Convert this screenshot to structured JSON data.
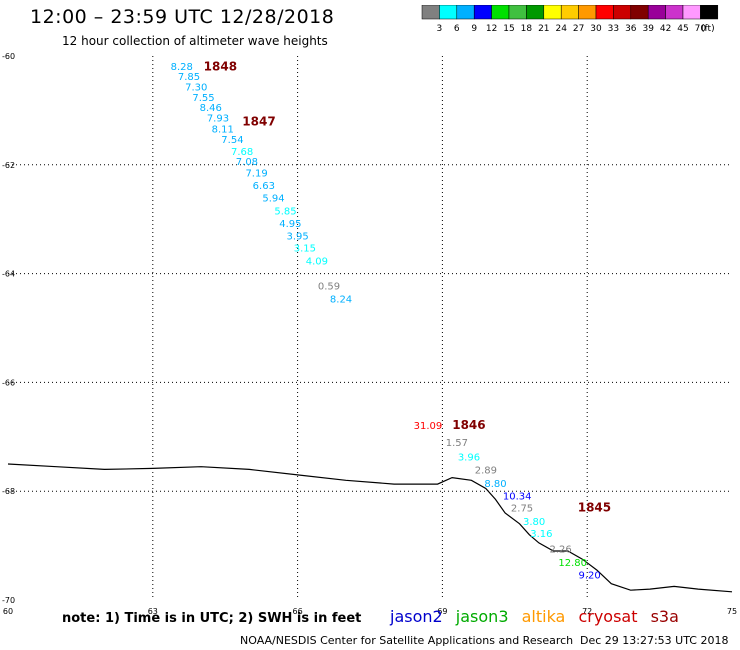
{
  "header": {
    "title": "12:00 – 23:59 UTC 12/28/2018",
    "subtitle": "12 hour collection of altimeter wave heights"
  },
  "scale": {
    "colors": [
      "#808080",
      "#00ffff",
      "#00b0ff",
      "#0000ff",
      "#00e000",
      "#40c040",
      "#009900",
      "#ffff00",
      "#ffcc00",
      "#ff9900",
      "#ff0000",
      "#cc0000",
      "#800000",
      "#990099",
      "#cc33cc",
      "#ff99ff",
      "#000000"
    ],
    "labels": [
      "3",
      "6",
      "9",
      "12",
      "15",
      "18",
      "21",
      "24",
      "27",
      "30",
      "33",
      "36",
      "39",
      "42",
      "45",
      "70"
    ],
    "unit": "(ft)"
  },
  "footer": {
    "note": "note: 1) Time is in UTC; 2) SWH is in feet",
    "legend": [
      {
        "name": "jason2",
        "color": "#0000cc"
      },
      {
        "name": "jason3",
        "color": "#00aa00"
      },
      {
        "name": "altika",
        "color": "#ff9900"
      },
      {
        "name": "cryosat",
        "color": "#cc0000"
      },
      {
        "name": "s3a",
        "color": "#990000"
      }
    ],
    "credit": "NOAA/NESDIS Center for Satellite Applications and Research",
    "timestamp": "Dec 29 13:27:53 UTC 2018"
  },
  "chart_data": {
    "type": "scatter",
    "xlim": [
      60,
      75
    ],
    "ylim": [
      -70,
      -60
    ],
    "x_ticks": [
      "60",
      "63",
      "66",
      "69",
      "72",
      "75"
    ],
    "y_ticks": [
      "-60",
      "-62",
      "-64",
      "-66",
      "-68",
      "-70"
    ],
    "grid": true,
    "swh_points": [
      {
        "lon": 63.6,
        "lat": -60.18,
        "text": "8.28",
        "color": "#00b0ff"
      },
      {
        "lon": 63.75,
        "lat": -60.37,
        "text": "7.85",
        "color": "#00b0ff"
      },
      {
        "lon": 63.9,
        "lat": -60.56,
        "text": "7.30",
        "color": "#00b0ff"
      },
      {
        "lon": 64.05,
        "lat": -60.75,
        "text": "7.55",
        "color": "#00b0ff"
      },
      {
        "lon": 64.2,
        "lat": -60.94,
        "text": "8.46",
        "color": "#00b0ff"
      },
      {
        "lon": 64.35,
        "lat": -61.13,
        "text": "7.93",
        "color": "#00b0ff"
      },
      {
        "lon": 64.45,
        "lat": -61.33,
        "text": "8.11",
        "color": "#00b0ff"
      },
      {
        "lon": 64.65,
        "lat": -61.53,
        "text": "7.54",
        "color": "#00b0ff"
      },
      {
        "lon": 64.85,
        "lat": -61.75,
        "text": "7.68",
        "color": "#00ffff"
      },
      {
        "lon": 64.95,
        "lat": -61.93,
        "text": "7.08",
        "color": "#00b0ff"
      },
      {
        "lon": 65.15,
        "lat": -62.14,
        "text": "7.19",
        "color": "#00b0ff"
      },
      {
        "lon": 65.3,
        "lat": -62.37,
        "text": "6.63",
        "color": "#00b0ff"
      },
      {
        "lon": 65.5,
        "lat": -62.6,
        "text": "5.94",
        "color": "#00b0ff"
      },
      {
        "lon": 65.75,
        "lat": -62.84,
        "text": "5.85",
        "color": "#00ffff"
      },
      {
        "lon": 65.85,
        "lat": -63.07,
        "text": "4.95",
        "color": "#00b0ff"
      },
      {
        "lon": 66.0,
        "lat": -63.3,
        "text": "3.95",
        "color": "#00b0ff"
      },
      {
        "lon": 66.15,
        "lat": -63.52,
        "text": "3.15",
        "color": "#00ffff"
      },
      {
        "lon": 66.4,
        "lat": -63.76,
        "text": "4.09",
        "color": "#00ffff"
      },
      {
        "lon": 66.65,
        "lat": -64.22,
        "text": "0.59",
        "color": "#808080"
      },
      {
        "lon": 66.9,
        "lat": -64.46,
        "text": "8.24",
        "color": "#00b0ff"
      },
      {
        "lon": 68.7,
        "lat": -66.78,
        "text": "31.09",
        "color": "#ff0000"
      },
      {
        "lon": 69.3,
        "lat": -67.1,
        "text": "1.57",
        "color": "#808080"
      },
      {
        "lon": 69.55,
        "lat": -67.36,
        "text": "3.96",
        "color": "#00ffff"
      },
      {
        "lon": 69.9,
        "lat": -67.6,
        "text": "2.89",
        "color": "#808080"
      },
      {
        "lon": 70.1,
        "lat": -67.85,
        "text": "8.80",
        "color": "#00b0ff"
      },
      {
        "lon": 70.55,
        "lat": -68.08,
        "text": "10.34",
        "color": "#0000ff"
      },
      {
        "lon": 70.65,
        "lat": -68.3,
        "text": "2.75",
        "color": "#808080"
      },
      {
        "lon": 70.9,
        "lat": -68.55,
        "text": "3.80",
        "color": "#00ffff"
      },
      {
        "lon": 71.05,
        "lat": -68.77,
        "text": "3.16",
        "color": "#00ffff"
      },
      {
        "lon": 71.45,
        "lat": -69.05,
        "text": "2.26",
        "color": "#808080"
      },
      {
        "lon": 71.7,
        "lat": -69.3,
        "text": "12.80",
        "color": "#00e000"
      },
      {
        "lon": 72.05,
        "lat": -69.53,
        "text": "9.20",
        "color": "#0000ff"
      }
    ],
    "time_labels": [
      {
        "lon": 64.4,
        "lat": -60.19,
        "text": "1848",
        "color": "#800000"
      },
      {
        "lon": 65.2,
        "lat": -61.2,
        "text": "1847",
        "color": "#800000"
      },
      {
        "lon": 69.55,
        "lat": -66.78,
        "text": "1846",
        "color": "#800000"
      },
      {
        "lon": 72.15,
        "lat": -68.3,
        "text": "1845",
        "color": "#800000"
      }
    ],
    "coastline": [
      [
        60,
        -67.5
      ],
      [
        61.0,
        -67.55
      ],
      [
        62.0,
        -67.6
      ],
      [
        63.0,
        -67.58
      ],
      [
        64.0,
        -67.55
      ],
      [
        65.0,
        -67.6
      ],
      [
        66.0,
        -67.7
      ],
      [
        67.0,
        -67.8
      ],
      [
        68.0,
        -67.87
      ],
      [
        68.9,
        -67.87
      ],
      [
        69.2,
        -67.75
      ],
      [
        69.6,
        -67.8
      ],
      [
        69.9,
        -67.95
      ],
      [
        70.1,
        -68.15
      ],
      [
        70.3,
        -68.4
      ],
      [
        70.6,
        -68.6
      ],
      [
        70.8,
        -68.8
      ],
      [
        71.0,
        -68.95
      ],
      [
        71.3,
        -69.1
      ],
      [
        71.6,
        -69.1
      ],
      [
        71.9,
        -69.25
      ],
      [
        72.2,
        -69.45
      ],
      [
        72.5,
        -69.7
      ],
      [
        72.9,
        -69.82
      ],
      [
        73.3,
        -69.8
      ],
      [
        73.8,
        -69.75
      ],
      [
        74.3,
        -69.8
      ],
      [
        75,
        -69.85
      ]
    ]
  }
}
